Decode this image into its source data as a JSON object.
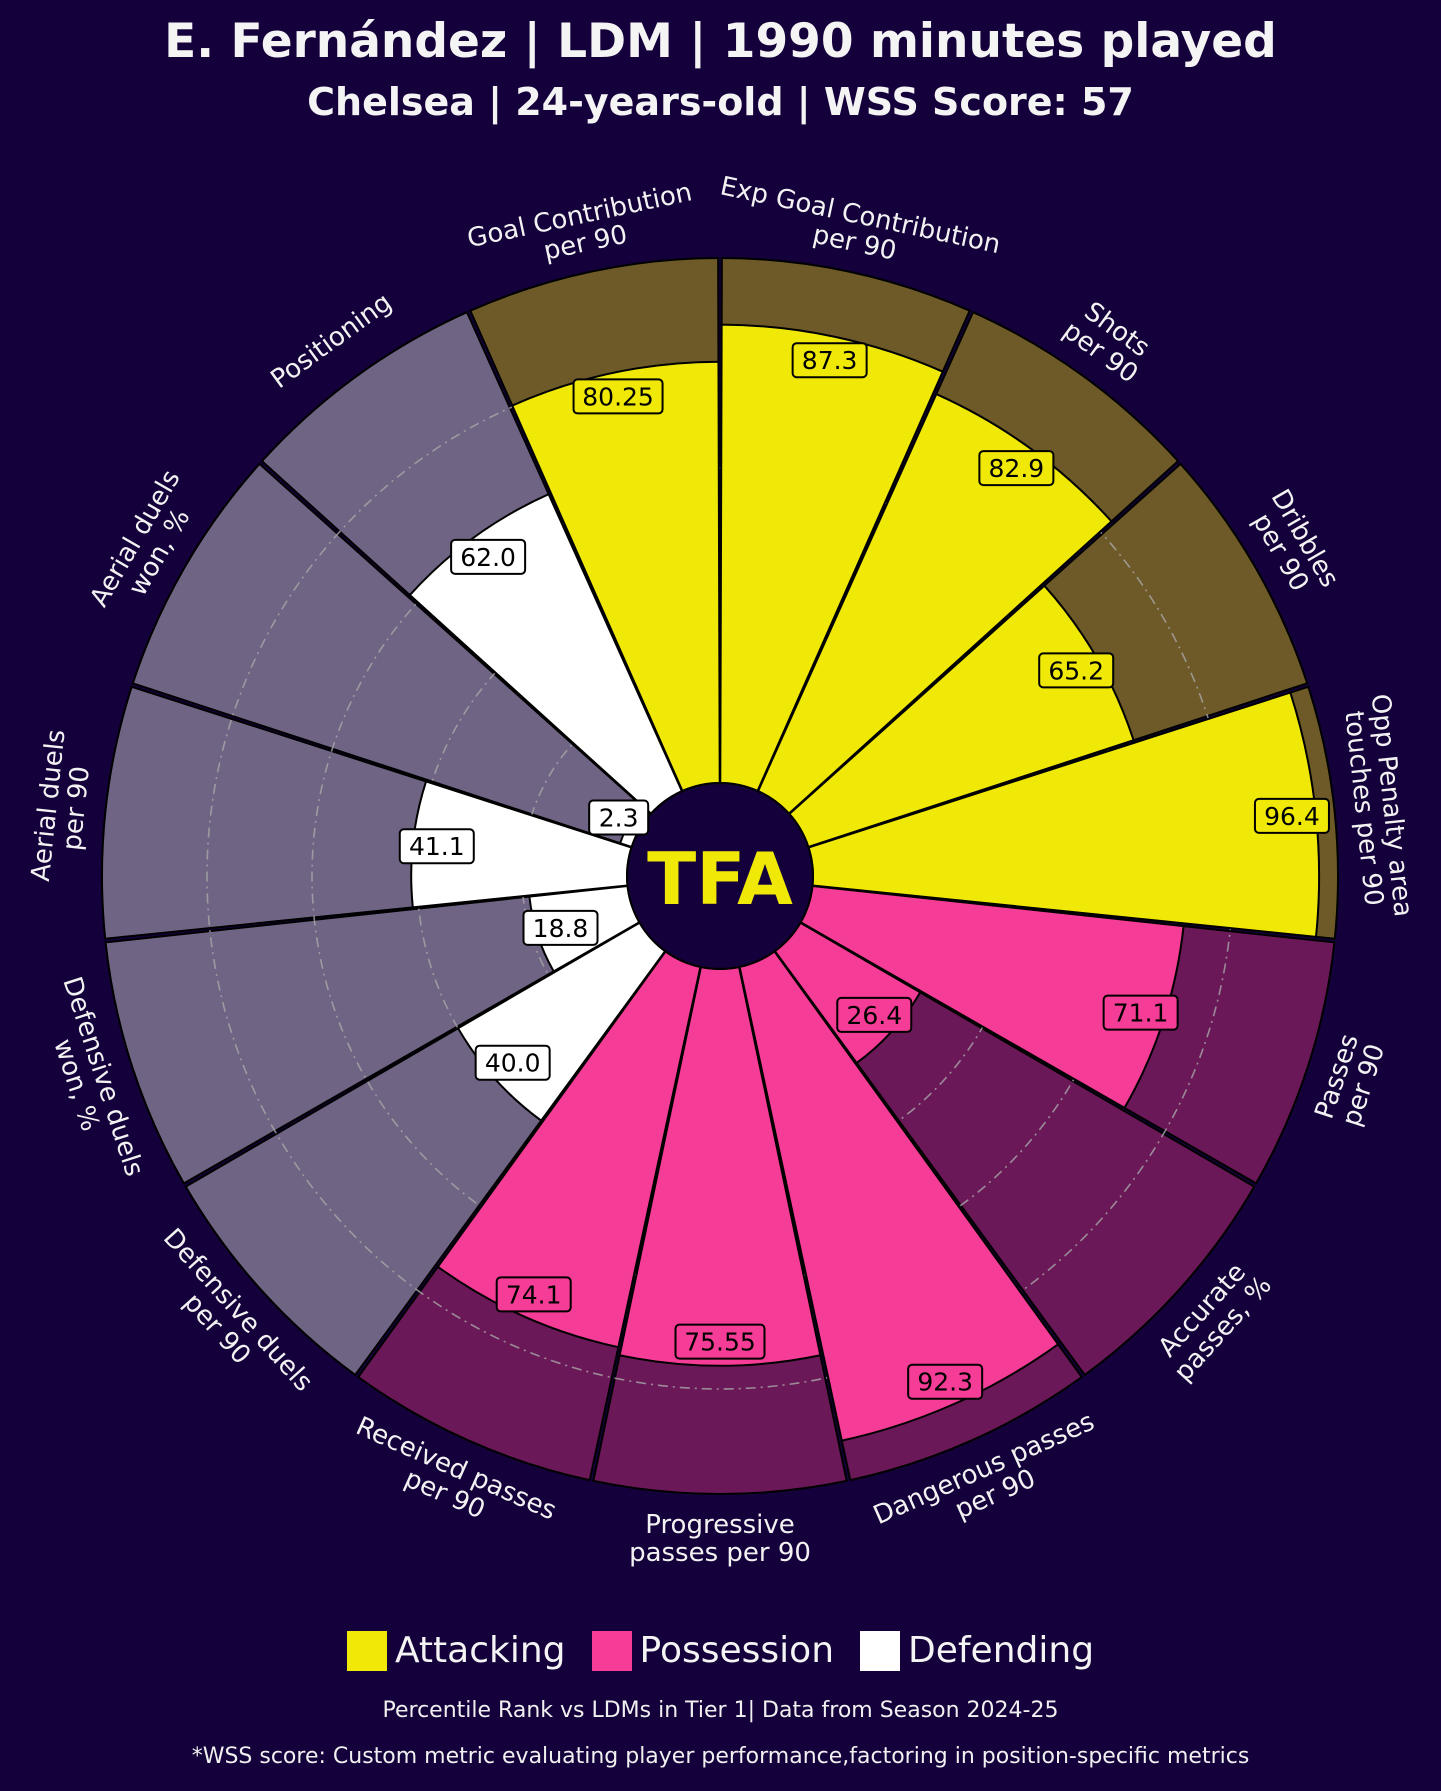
{
  "header": {
    "title": "E. Fernández | LDM | 1990 minutes played",
    "subtitle": "Chelsea | 24-years-old | WSS Score: 57"
  },
  "logo_text": "TFA",
  "colors": {
    "background": "#14003a",
    "attacking": "#f0e806",
    "attacking_bg": "#6e5a28",
    "possession": "#f53c96",
    "possession_bg": "#6b1858",
    "defending": "#ffffff",
    "defending_bg": "#706484",
    "center": "#14003a",
    "logo": "#f0e806"
  },
  "legend": [
    {
      "label": "Attacking",
      "color": "#f0e806"
    },
    {
      "label": "Possession",
      "color": "#f53c96"
    },
    {
      "label": "Defending",
      "color": "#ffffff"
    }
  ],
  "footnotes": {
    "line1": "Percentile Rank vs LDMs in Tier 1| Data from Season 2024-25",
    "line2": "*WSS score: Custom metric evaluating player performance,factoring in position-specific metrics"
  },
  "chart_data": {
    "type": "pizza",
    "title": "E. Fernández | LDM | 1990 minutes played",
    "value_range": [
      0,
      100
    ],
    "grid": true,
    "legend_position": "bottom-center",
    "params": [
      {
        "label": "Goal Contribution\nper 90",
        "value": 80.25,
        "value_label": "80.25",
        "category": "Attacking"
      },
      {
        "label": "Exp Goal Contribution\nper 90",
        "value": 87.3,
        "value_label": "87.3",
        "category": "Attacking"
      },
      {
        "label": "Shots\nper 90",
        "value": 82.9,
        "value_label": "82.9",
        "category": "Attacking"
      },
      {
        "label": "Dribbles\nper 90",
        "value": 65.2,
        "value_label": "65.2",
        "category": "Attacking"
      },
      {
        "label": "Opp Penalty area\ntouches per 90",
        "value": 96.4,
        "value_label": "96.4",
        "category": "Attacking"
      },
      {
        "label": "Passes\nper 90",
        "value": 71.1,
        "value_label": "71.1",
        "category": "Possession"
      },
      {
        "label": "Accurate\npasses, %",
        "value": 26.4,
        "value_label": "26.4",
        "category": "Possession"
      },
      {
        "label": "Dangerous passes\nper 90",
        "value": 92.3,
        "value_label": "92.3",
        "category": "Possession"
      },
      {
        "label": "Progressive\npasses per 90",
        "value": 75.55,
        "value_label": "75.55",
        "category": "Possession"
      },
      {
        "label": "Received passes\nper 90",
        "value": 74.1,
        "value_label": "74.1",
        "category": "Possession"
      },
      {
        "label": "Defensive duels\nper 90",
        "value": 40.0,
        "value_label": "40.0",
        "category": "Defending"
      },
      {
        "label": "Defensive duels\nwon, %",
        "value": 18.8,
        "value_label": "18.8",
        "category": "Defending"
      },
      {
        "label": "Aerial duels\nper 90",
        "value": 41.1,
        "value_label": "41.1",
        "category": "Defending"
      },
      {
        "label": "Aerial duels\nwon, %",
        "value": 2.3,
        "value_label": "2.3",
        "category": "Defending"
      },
      {
        "label": "Positioning",
        "value": 62.0,
        "value_label": "62.0",
        "category": "Defending"
      }
    ]
  }
}
